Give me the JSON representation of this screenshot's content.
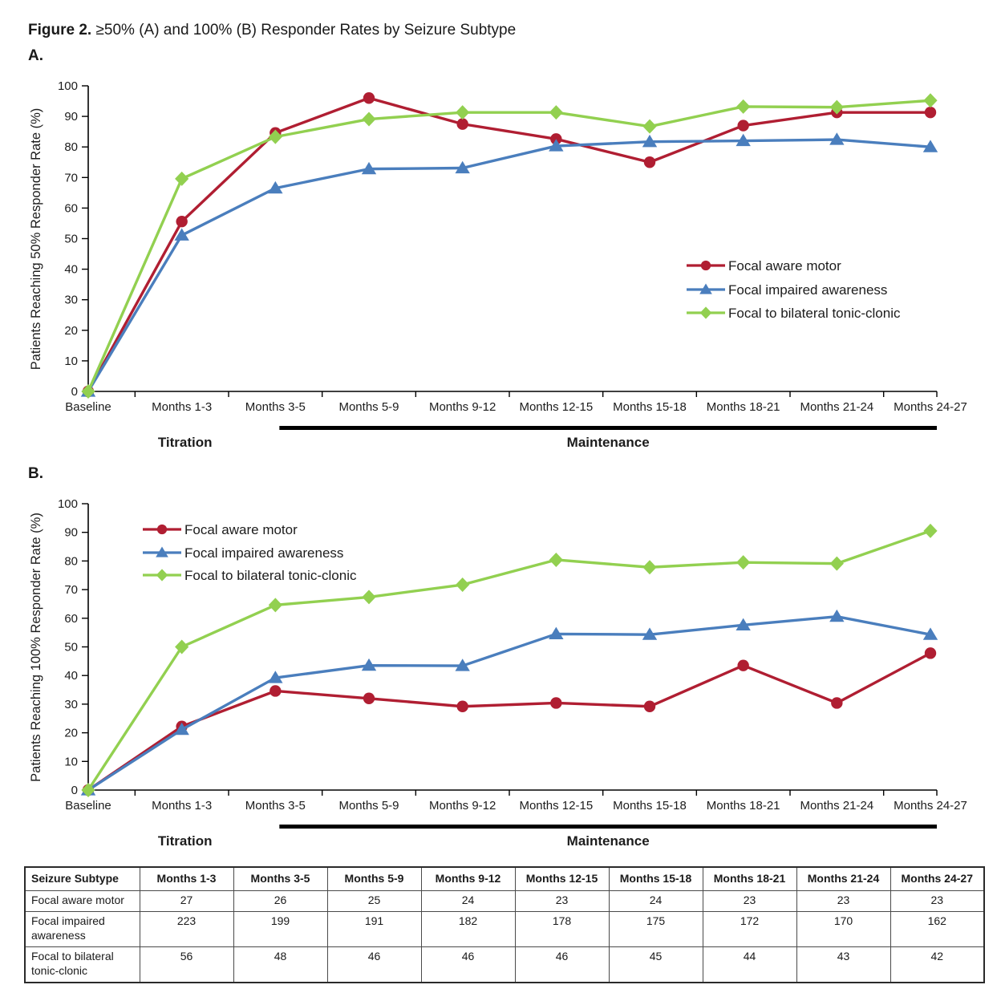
{
  "figure": {
    "title_bold": "Figure 2.",
    "title_rest": " ≥50% (A) and 100% (B) Responder Rates by Seizure Subtype",
    "panel_a_label": "A.",
    "panel_b_label": "B."
  },
  "colors": {
    "focal_aware_motor": "#B01E32",
    "focal_impaired_awareness": "#4A7EBD",
    "focal_to_bilateral_tonic_clonic": "#92D050",
    "axis": "#000000",
    "phase_bar": "#000000"
  },
  "chart_data": [
    {
      "id": "A",
      "type": "line",
      "ylabel": "Patients Reaching 50% Responder Rate (%)",
      "ylim": [
        0,
        100
      ],
      "ytick_step": 10,
      "grid": false,
      "legend_position": "right-middle",
      "categories": [
        "Baseline",
        "Months 1-3",
        "Months 3-5",
        "Months 5-9",
        "Months 9-12",
        "Months 12-15",
        "Months 15-18",
        "Months 18-21",
        "Months 21-24",
        "Months 24-27"
      ],
      "series": [
        {
          "name": "Focal aware motor",
          "marker": "circle",
          "color": "#B01E32",
          "values": [
            0,
            55.6,
            84.6,
            96.0,
            87.5,
            82.6,
            75.0,
            87.0,
            91.3,
            91.3
          ]
        },
        {
          "name": "Focal impaired awareness",
          "marker": "triangle",
          "color": "#4A7EBD",
          "values": [
            0,
            51.1,
            66.5,
            72.8,
            73.1,
            80.3,
            81.7,
            82.0,
            82.4,
            80.0
          ]
        },
        {
          "name": "Focal to bilateral tonic-clonic",
          "marker": "diamond",
          "color": "#92D050",
          "values": [
            0,
            69.6,
            83.3,
            89.1,
            91.3,
            91.3,
            86.7,
            93.2,
            93.0,
            95.2
          ]
        }
      ],
      "phases": {
        "titration_label": "Titration",
        "titration_index": 1,
        "maintenance_label": "Maintenance",
        "maintenance_start_index": 2
      }
    },
    {
      "id": "B",
      "type": "line",
      "ylabel": "Patients Reaching 100% Responder Rate (%)",
      "ylim": [
        0,
        100
      ],
      "ytick_step": 10,
      "grid": false,
      "legend_position": "left-top",
      "categories": [
        "Baseline",
        "Months 1-3",
        "Months 3-5",
        "Months 5-9",
        "Months 9-12",
        "Months 12-15",
        "Months 15-18",
        "Months 18-21",
        "Months 21-24",
        "Months 24-27"
      ],
      "series": [
        {
          "name": "Focal aware motor",
          "marker": "circle",
          "color": "#B01E32",
          "values": [
            0,
            22.2,
            34.6,
            32.0,
            29.2,
            30.4,
            29.2,
            43.5,
            30.4,
            47.8
          ]
        },
        {
          "name": "Focal impaired awareness",
          "marker": "triangle",
          "color": "#4A7EBD",
          "values": [
            0,
            21.1,
            39.2,
            43.5,
            43.4,
            54.5,
            54.3,
            57.6,
            60.6,
            54.3
          ]
        },
        {
          "name": "Focal to bilateral tonic-clonic",
          "marker": "diamond",
          "color": "#92D050",
          "values": [
            0,
            50.0,
            64.6,
            67.4,
            71.7,
            80.4,
            77.8,
            79.5,
            79.1,
            90.5
          ]
        }
      ],
      "phases": {
        "titration_label": "Titration",
        "titration_index": 1,
        "maintenance_label": "Maintenance",
        "maintenance_start_index": 2
      }
    }
  ],
  "table": {
    "headers": [
      "Seizure Subtype",
      "Months 1-3",
      "Months 3-5",
      "Months 5-9",
      "Months 9-12",
      "Months 12-15",
      "Months 15-18",
      "Months 18-21",
      "Months 21-24",
      "Months 24-27"
    ],
    "rows": [
      {
        "label": "Focal aware motor",
        "values": [
          27,
          26,
          25,
          24,
          23,
          24,
          23,
          23,
          23
        ]
      },
      {
        "label": "Focal impaired awareness",
        "values": [
          223,
          199,
          191,
          182,
          178,
          175,
          172,
          170,
          162
        ]
      },
      {
        "label": "Focal to bilateral tonic-clonic",
        "values": [
          56,
          48,
          46,
          46,
          46,
          45,
          44,
          43,
          42
        ]
      }
    ]
  }
}
